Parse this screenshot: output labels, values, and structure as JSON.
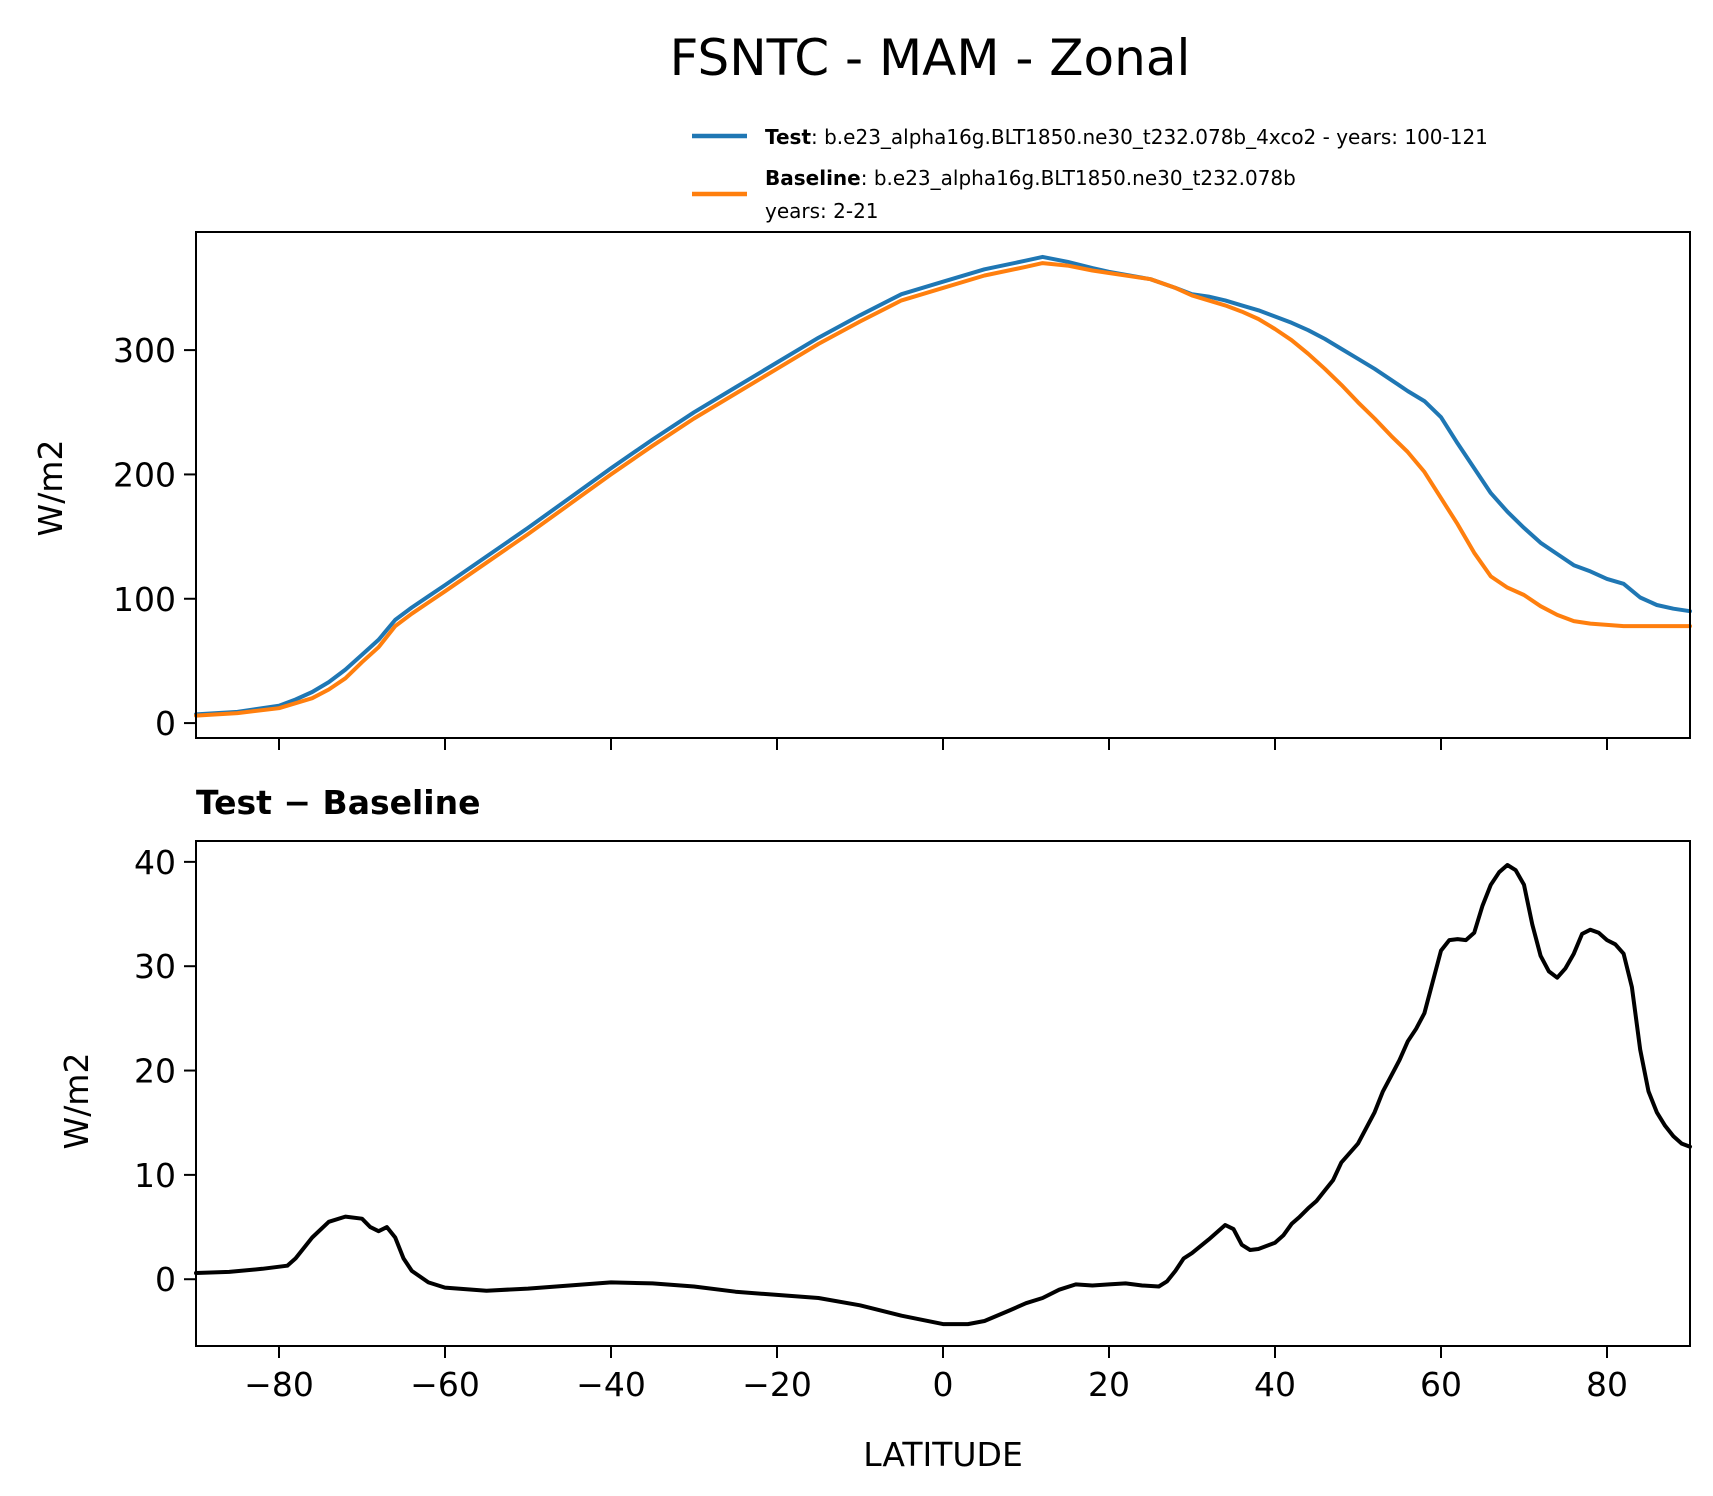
{
  "title": "FSNTC - MAM - Zonal",
  "colors": {
    "test": "#1f77b4",
    "baseline": "#ff7f0e",
    "diff": "#000000"
  },
  "legend": {
    "test_label": "Test",
    "test_text": ": b.e23_alpha16g.BLT1850.ne30_t232.078b_4xco2 - years: 100-121",
    "baseline_label": "Baseline",
    "baseline_text": ": b.e23_alpha16g.BLT1850.ne30_t232.078b",
    "baseline_years": "years: 2-21"
  },
  "chart_data": [
    {
      "type": "line",
      "panel": "top",
      "ylabel": "W/m2",
      "xlim": [
        -90,
        90
      ],
      "ylim": [
        -12,
        395
      ],
      "yticks": [
        "0",
        "100",
        "200",
        "300"
      ],
      "ytick_values": [
        0,
        100,
        200,
        300
      ],
      "series": [
        {
          "name": "Test",
          "x": [
            -90,
            -85,
            -80,
            -78,
            -76,
            -74,
            -72,
            -70,
            -68,
            -66,
            -64,
            -62,
            -60,
            -55,
            -50,
            -45,
            -40,
            -35,
            -30,
            -25,
            -20,
            -15,
            -10,
            -5,
            0,
            5,
            10,
            12,
            15,
            18,
            20,
            25,
            28,
            30,
            32,
            34,
            36,
            38,
            40,
            42,
            44,
            46,
            48,
            50,
            52,
            54,
            56,
            58,
            60,
            62,
            64,
            66,
            68,
            70,
            72,
            74,
            76,
            78,
            80,
            82,
            84,
            86,
            88,
            90
          ],
          "y": [
            7,
            9,
            14,
            19,
            25,
            33,
            43,
            55,
            67,
            83,
            93,
            102,
            111,
            134,
            157,
            181,
            205,
            228,
            250,
            270,
            290,
            310,
            328,
            345,
            355,
            365,
            372,
            375,
            371,
            366,
            363,
            357,
            350,
            345,
            343,
            340,
            336,
            332,
            327,
            322,
            316,
            309,
            301,
            293,
            285,
            276,
            267,
            259,
            246,
            225,
            205,
            185,
            170,
            157,
            145,
            136,
            127,
            122,
            116,
            112,
            101,
            95,
            92,
            90
          ],
          "color": "#1f77b4"
        },
        {
          "name": "Baseline",
          "x": [
            -90,
            -85,
            -80,
            -78,
            -76,
            -74,
            -72,
            -70,
            -68,
            -66,
            -64,
            -62,
            -60,
            -55,
            -50,
            -45,
            -40,
            -35,
            -30,
            -25,
            -20,
            -15,
            -10,
            -5,
            0,
            5,
            10,
            12,
            15,
            18,
            20,
            25,
            28,
            30,
            32,
            34,
            36,
            38,
            40,
            42,
            44,
            46,
            48,
            50,
            52,
            54,
            56,
            58,
            60,
            62,
            64,
            66,
            68,
            70,
            72,
            74,
            76,
            78,
            80,
            82,
            84,
            86,
            88,
            90
          ],
          "y": [
            6,
            8,
            12,
            16,
            20,
            27,
            36,
            49,
            61,
            78,
            88,
            97,
            106,
            129,
            152,
            176,
            200,
            223,
            245,
            265,
            285,
            305,
            323,
            340,
            350,
            360,
            367,
            370,
            368,
            364,
            362,
            357,
            350,
            344,
            340,
            336,
            331,
            325,
            317,
            308,
            297,
            285,
            272,
            258,
            245,
            231,
            218,
            202,
            181,
            160,
            137,
            118,
            109,
            103,
            94,
            87,
            82,
            80,
            79,
            78,
            78,
            78,
            78,
            78
          ],
          "color": "#ff7f0e"
        }
      ]
    },
    {
      "type": "line",
      "panel": "bottom",
      "title": "Test − Baseline",
      "xlabel": "LATITUDE",
      "ylabel": "W/m2",
      "xlim": [
        -90,
        90
      ],
      "ylim": [
        -6.4,
        42
      ],
      "xticks": [
        "−80",
        "−60",
        "−40",
        "−20",
        "0",
        "20",
        "40",
        "60",
        "80"
      ],
      "xtick_values": [
        -80,
        -60,
        -40,
        -20,
        0,
        20,
        40,
        60,
        80
      ],
      "yticks": [
        "0",
        "10",
        "20",
        "30",
        "40"
      ],
      "ytick_values": [
        0,
        10,
        20,
        30,
        40
      ],
      "series": [
        {
          "name": "Test − Baseline",
          "x": [
            -90,
            -86,
            -82,
            -79,
            -78,
            -76,
            -74,
            -72,
            -70,
            -69,
            -68,
            -67,
            -66,
            -65,
            -64,
            -62,
            -60,
            -55,
            -50,
            -45,
            -40,
            -35,
            -30,
            -25,
            -20,
            -15,
            -10,
            -5,
            0,
            3,
            5,
            8,
            10,
            12,
            14,
            16,
            18,
            20,
            22,
            24,
            26,
            27,
            28,
            29,
            30,
            32,
            34,
            35,
            36,
            37,
            38,
            40,
            41,
            42,
            43,
            44,
            45,
            46,
            47,
            48,
            50,
            51,
            52,
            53,
            54,
            55,
            56,
            57,
            58,
            59,
            60,
            61,
            62,
            63,
            64,
            65,
            66,
            67,
            68,
            69,
            70,
            71,
            72,
            73,
            74,
            75,
            76,
            77,
            78,
            79,
            80,
            81,
            82,
            83,
            84,
            85,
            86,
            87,
            88,
            89,
            90
          ],
          "y": [
            0.6,
            0.7,
            1.0,
            1.3,
            2.0,
            4.0,
            5.5,
            6.0,
            5.8,
            5.0,
            4.6,
            5.0,
            4.0,
            2.0,
            0.8,
            -0.3,
            -0.8,
            -1.1,
            -0.9,
            -0.6,
            -0.3,
            -0.4,
            -0.7,
            -1.2,
            -1.5,
            -1.8,
            -2.5,
            -3.5,
            -4.3,
            -4.3,
            -4.0,
            -3.0,
            -2.3,
            -1.8,
            -1.0,
            -0.5,
            -0.6,
            -0.5,
            -0.4,
            -0.6,
            -0.7,
            -0.2,
            0.8,
            2.0,
            2.5,
            3.8,
            5.2,
            4.8,
            3.3,
            2.8,
            2.9,
            3.5,
            4.2,
            5.3,
            6.0,
            6.8,
            7.5,
            8.5,
            9.5,
            11.2,
            13.0,
            14.5,
            16.0,
            18.0,
            19.5,
            21.0,
            22.8,
            24.0,
            25.5,
            28.5,
            31.5,
            32.5,
            32.6,
            32.5,
            33.2,
            35.8,
            37.8,
            39.0,
            39.7,
            39.2,
            37.8,
            34.0,
            31.0,
            29.5,
            28.9,
            29.8,
            31.2,
            33.1,
            33.5,
            33.2,
            32.5,
            32.1,
            31.2,
            28.0,
            22.0,
            18.0,
            16.0,
            14.7,
            13.7,
            13.0,
            12.7
          ],
          "color": "#000000"
        }
      ]
    }
  ]
}
